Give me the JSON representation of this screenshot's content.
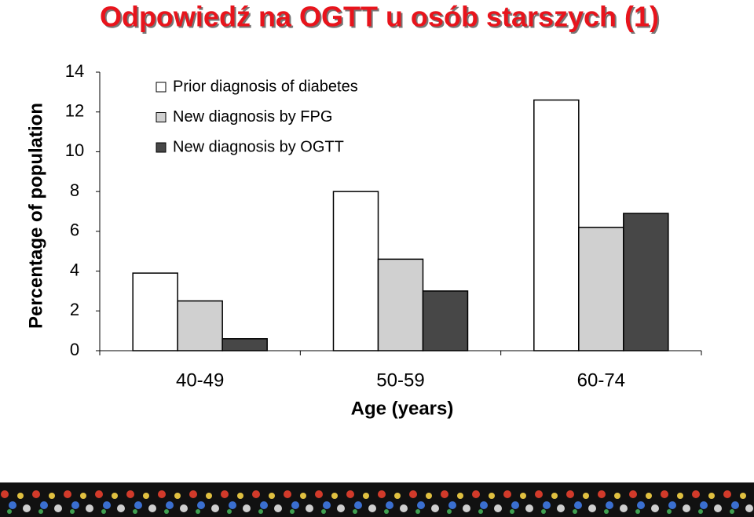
{
  "chart_data": {
    "type": "bar",
    "title": "Odpowiedź na OGTT u osób starszych (1)",
    "y_label": "Percentage of population",
    "x_label": "Age (years)",
    "categories": [
      "40-49",
      "50-59",
      "60-74"
    ],
    "series": [
      {
        "name": "Prior diagnosis of diabetes",
        "color": "#ffffff",
        "values": [
          3.9,
          8.0,
          12.6
        ]
      },
      {
        "name": "New diagnosis by FPG",
        "color": "#d0d0d0",
        "values": [
          2.5,
          4.6,
          6.2
        ]
      },
      {
        "name": "New diagnosis by OGTT",
        "color": "#474747",
        "values": [
          0.6,
          3.0,
          6.9
        ]
      }
    ],
    "ylim": [
      0,
      14
    ],
    "yticks": [
      0,
      2,
      4,
      6,
      8,
      10,
      12,
      14
    ],
    "grid": false,
    "legend": "top-left"
  }
}
